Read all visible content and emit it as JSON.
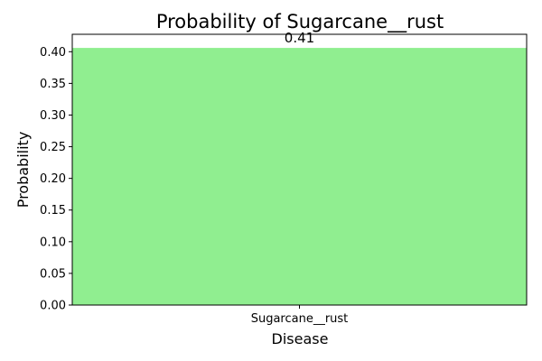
{
  "chart_data": {
    "type": "bar",
    "title": "Probability of Sugarcane__rust",
    "xlabel": "Disease",
    "ylabel": "Probability",
    "categories": [
      "Sugarcane__rust"
    ],
    "values": [
      0.406
    ],
    "data_labels": [
      "0.41"
    ],
    "ylim": [
      0,
      0.4275
    ],
    "yticks": [
      0.0,
      0.05,
      0.1,
      0.15,
      0.2,
      0.25,
      0.3,
      0.35,
      0.4
    ],
    "ytick_labels": [
      "0.00",
      "0.05",
      "0.10",
      "0.15",
      "0.20",
      "0.25",
      "0.30",
      "0.35",
      "0.40"
    ],
    "grid": false,
    "bar_color": "#90ee90"
  }
}
